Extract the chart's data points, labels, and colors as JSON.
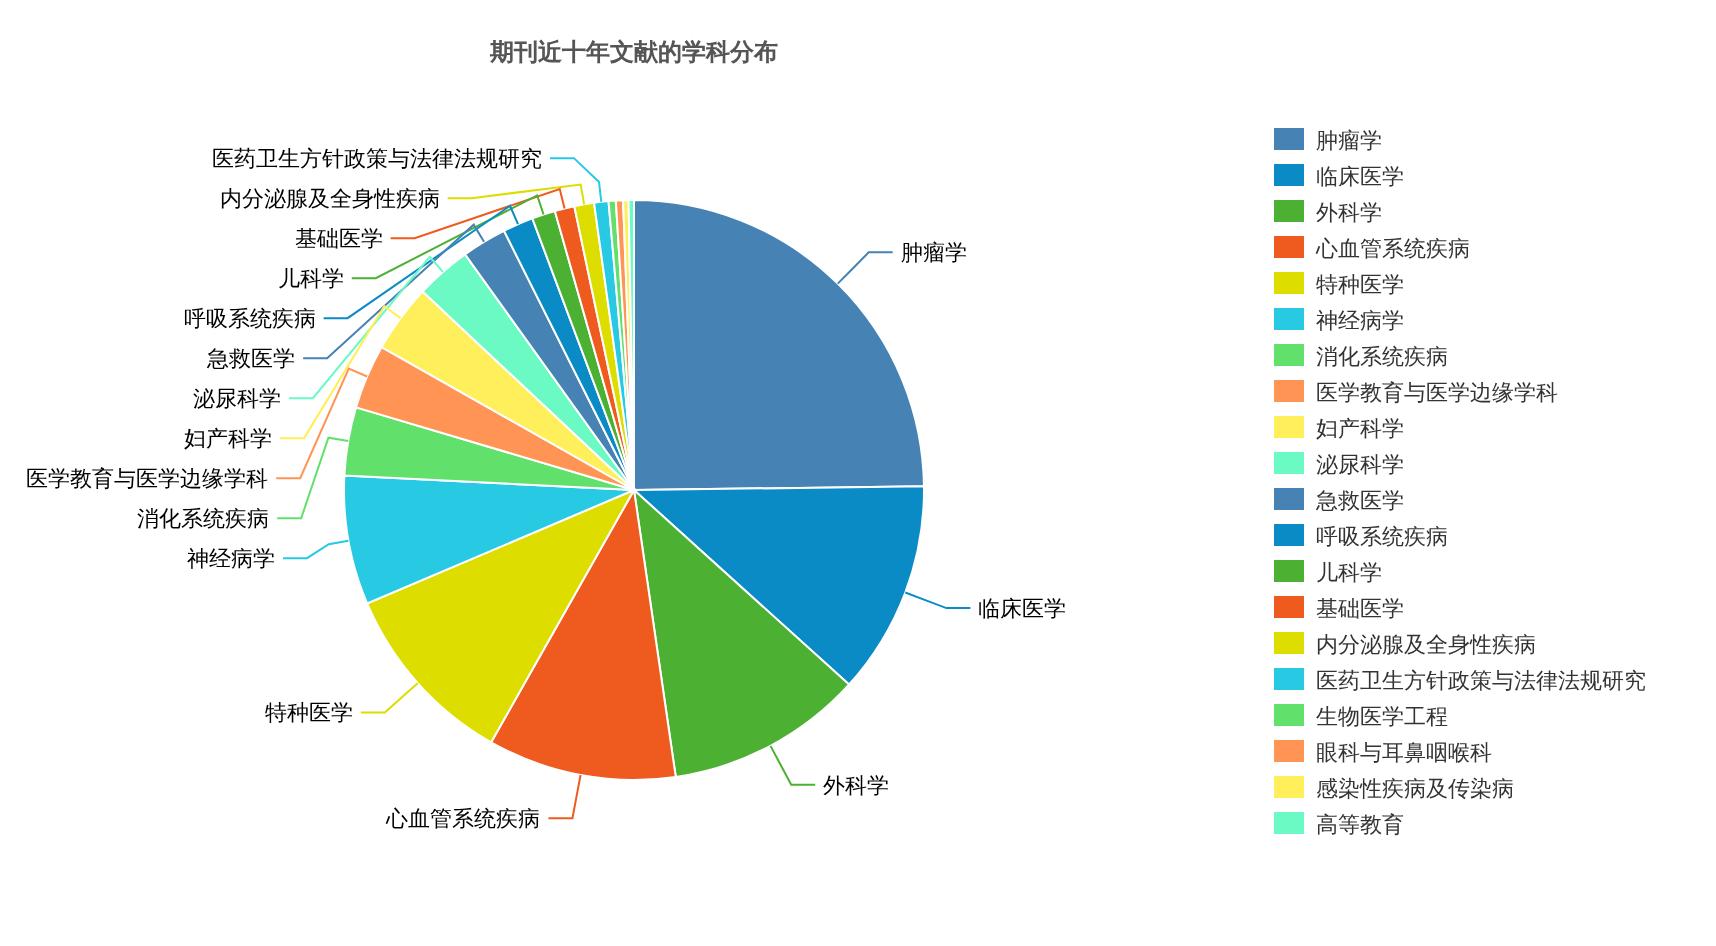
{
  "chart_data": {
    "type": "pie",
    "title": "期刊近十年文献的学科分布",
    "legend": "right",
    "categories": [
      "肿瘤学",
      "临床医学",
      "外科学",
      "心血管系统疾病",
      "特种医学",
      "神经病学",
      "消化系统疾病",
      "医学教育与医学边缘学科",
      "妇产科学",
      "泌尿科学",
      "急救医学",
      "呼吸系统疾病",
      "儿科学",
      "基础医学",
      "内分泌腺及全身性疾病",
      "医药卫生方针政策与法律法规研究",
      "生物医学工程",
      "眼科与耳鼻咽喉科",
      "感染性疾病及传染病",
      "高等教育"
    ],
    "values": [
      24.8,
      11.9,
      11,
      10.5,
      10.4,
      7.2,
      3.8,
      3.6,
      3.8,
      3.1,
      2.5,
      1.7,
      1.3,
      1.1,
      1.1,
      0.8,
      0.4,
      0.4,
      0.3,
      0.3
    ],
    "colors": [
      "#4682b4",
      "#0a8bc6",
      "#4cb133",
      "#ef5a1e",
      "#dddd00",
      "#27c9e3",
      "#61e06c",
      "#ff9455",
      "#ffef5a",
      "#6bf9c4",
      "#4682b4",
      "#0a8bc6",
      "#4cb133",
      "#ef5a1e",
      "#dddd00",
      "#27c9e3",
      "#61e06c",
      "#ff9455",
      "#ffef5a",
      "#6bf9c4"
    ]
  }
}
